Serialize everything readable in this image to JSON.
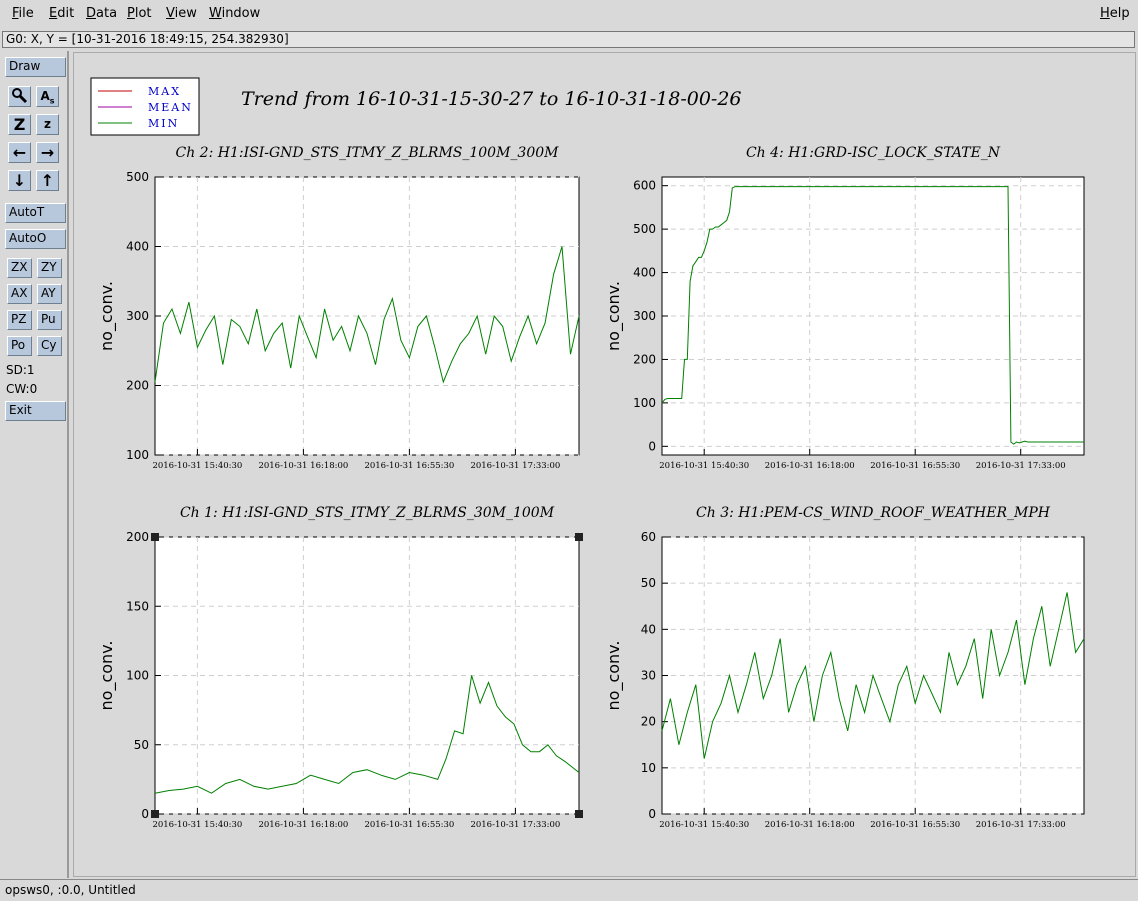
{
  "menu": [
    "File",
    "Edit",
    "Data",
    "Plot",
    "View",
    "Window"
  ],
  "help_label": "Help",
  "readout": "G0: X, Y = [10-31-2016 18:49:15, 254.382930]",
  "toolbar": {
    "draw": "Draw",
    "icons": [
      "magnify-icon",
      "text-icon",
      "zoom-out-icon",
      "zoom-in-icon",
      "arrow-left-icon",
      "arrow-right-icon",
      "arrow-down-icon",
      "arrow-up-icon"
    ],
    "icon_glyphs": [
      "🔍︎",
      "A",
      "Z",
      "z",
      "←",
      "→",
      "↓",
      "↑"
    ],
    "autot": "AutoT",
    "autoo": "AutoO",
    "pairs": [
      [
        "ZX",
        "ZY"
      ],
      [
        "AX",
        "AY"
      ],
      [
        "PZ",
        "Pu"
      ],
      [
        "Po",
        "Cy"
      ]
    ],
    "sd": "SD:1",
    "cw": "CW:0",
    "exit": "Exit"
  },
  "status": "opsws0, :0.0, Untitled",
  "legend": [
    {
      "label": "MAX",
      "color": "#c00000"
    },
    {
      "label": "MEAN",
      "color": "#a000a0"
    },
    {
      "label": "MIN",
      "color": "#008000"
    }
  ],
  "trend_title": "Trend from 16-10-31-15-30-27 to 16-10-31-18-00-26",
  "chart_data": [
    {
      "type": "line",
      "title": "Ch 2: H1:ISI-GND_STS_ITMY_Z_BLRMS_100M_300M",
      "ylabel": "no_conv.",
      "ylim": [
        100,
        500
      ],
      "yticks": [
        100,
        200,
        300,
        400,
        500
      ],
      "xticks": [
        "2016-10-31 15:40:30",
        "2016-10-31 16:18:00",
        "2016-10-31 16:55:30",
        "2016-10-31 17:33:00"
      ],
      "xlim": [
        0,
        150
      ],
      "grid": true,
      "series": [
        {
          "name": "MIN",
          "color": "#008000",
          "x": [
            0,
            3,
            6,
            9,
            12,
            15,
            18,
            21,
            24,
            27,
            30,
            33,
            36,
            39,
            42,
            45,
            48,
            51,
            54,
            57,
            60,
            63,
            66,
            69,
            72,
            75,
            78,
            81,
            84,
            87,
            90,
            93,
            96,
            99,
            102,
            105,
            108,
            111,
            114,
            117,
            120,
            123,
            126,
            129,
            132,
            135,
            138,
            141,
            144,
            147,
            150
          ],
          "y": [
            205,
            290,
            310,
            275,
            320,
            255,
            280,
            300,
            230,
            295,
            285,
            260,
            310,
            250,
            275,
            290,
            225,
            300,
            270,
            240,
            310,
            265,
            285,
            250,
            300,
            275,
            230,
            295,
            325,
            265,
            240,
            285,
            300,
            255,
            205,
            235,
            260,
            275,
            300,
            245,
            300,
            285,
            235,
            270,
            300,
            260,
            290,
            360,
            400,
            245,
            300
          ]
        }
      ]
    },
    {
      "type": "line",
      "title": "Ch 4: H1:GRD-ISC_LOCK_STATE_N",
      "ylabel": "no_conv.",
      "ylim": [
        -20,
        620
      ],
      "yticks": [
        0,
        100,
        200,
        300,
        400,
        500,
        600
      ],
      "xticks": [
        "2016-10-31 15:40:30",
        "2016-10-31 16:18:00",
        "2016-10-31 16:55:30",
        "2016-10-31 17:33:00"
      ],
      "xlim": [
        0,
        150
      ],
      "grid": true,
      "series": [
        {
          "name": "MIN",
          "color": "#008000",
          "x": [
            0,
            1,
            2,
            7,
            8,
            9,
            10,
            11,
            12,
            13,
            14,
            15,
            16,
            17,
            18,
            19,
            20,
            21,
            22,
            23,
            24,
            25,
            26,
            27,
            28,
            29,
            30,
            31,
            32,
            33,
            34,
            35,
            36,
            37,
            38,
            39,
            40,
            41,
            42,
            43,
            44,
            45,
            46,
            47,
            48,
            49,
            50,
            51,
            52,
            53,
            54,
            55,
            56,
            57,
            58,
            59,
            60,
            61,
            62,
            63,
            64,
            65,
            66,
            67,
            68,
            69,
            70,
            71,
            72,
            73,
            74,
            75,
            76,
            77,
            78,
            79,
            80,
            81,
            82,
            83,
            84,
            85,
            86,
            87,
            88,
            89,
            90,
            91,
            92,
            93,
            94,
            95,
            96,
            97,
            98,
            99,
            100,
            101,
            102,
            103,
            104,
            105,
            106,
            107,
            108,
            109,
            110,
            111,
            112,
            113,
            114,
            115,
            116,
            117,
            118,
            119,
            120,
            121,
            122,
            123,
            124,
            125,
            126,
            127,
            128,
            129,
            130,
            131,
            132,
            133,
            134,
            135,
            136,
            137,
            138,
            139,
            140,
            141,
            142,
            143,
            144,
            145,
            146,
            147,
            148,
            149,
            150
          ],
          "y": [
            100,
            108,
            110,
            110,
            200,
            200,
            380,
            415,
            425,
            435,
            435,
            450,
            470,
            500,
            500,
            505,
            505,
            510,
            515,
            520,
            540,
            595,
            598,
            598,
            598,
            598,
            598,
            598,
            598,
            598,
            598,
            598,
            598,
            598,
            598,
            598,
            598,
            598,
            598,
            598,
            598,
            598,
            598,
            598,
            598,
            598,
            598,
            598,
            598,
            598,
            598,
            598,
            598,
            598,
            598,
            598,
            598,
            598,
            598,
            598,
            598,
            598,
            598,
            598,
            598,
            598,
            598,
            598,
            598,
            598,
            598,
            598,
            598,
            598,
            598,
            598,
            598,
            598,
            598,
            598,
            598,
            598,
            598,
            598,
            598,
            598,
            598,
            598,
            598,
            598,
            598,
            598,
            598,
            598,
            598,
            598,
            598,
            598,
            598,
            598,
            598,
            598,
            598,
            598,
            598,
            598,
            598,
            598,
            598,
            598,
            598,
            598,
            598,
            598,
            598,
            598,
            598,
            598,
            598,
            598,
            10,
            5,
            10,
            8,
            10,
            12,
            10,
            10,
            10,
            10,
            10,
            10,
            10,
            10,
            10,
            10,
            10,
            10,
            10,
            10,
            10,
            10,
            10,
            10,
            10,
            10,
            10
          ]
        }
      ]
    },
    {
      "type": "line",
      "title": "Ch 1: H1:ISI-GND_STS_ITMY_Z_BLRMS_30M_100M",
      "ylabel": "no_conv.",
      "ylim": [
        0,
        200
      ],
      "yticks": [
        0,
        50,
        100,
        150,
        200
      ],
      "xticks": [
        "2016-10-31 15:40:30",
        "2016-10-31 16:18:00",
        "2016-10-31 16:55:30",
        "2016-10-31 17:33:00"
      ],
      "xlim": [
        0,
        150
      ],
      "grid": true,
      "series": [
        {
          "name": "MIN",
          "color": "#008000",
          "x": [
            0,
            5,
            10,
            15,
            20,
            25,
            30,
            35,
            40,
            45,
            50,
            55,
            60,
            65,
            70,
            75,
            80,
            85,
            90,
            95,
            100,
            103,
            106,
            109,
            112,
            115,
            118,
            121,
            124,
            127,
            130,
            133,
            136,
            139,
            142,
            145,
            150
          ],
          "y": [
            15,
            17,
            18,
            20,
            15,
            22,
            25,
            20,
            18,
            20,
            22,
            28,
            25,
            22,
            30,
            32,
            28,
            25,
            30,
            28,
            25,
            40,
            60,
            58,
            100,
            80,
            95,
            78,
            70,
            65,
            50,
            45,
            45,
            50,
            42,
            38,
            30
          ]
        }
      ]
    },
    {
      "type": "line",
      "title": "Ch 3: H1:PEM-CS_WIND_ROOF_WEATHER_MPH",
      "ylabel": "no_conv.",
      "ylim": [
        0,
        60
      ],
      "yticks": [
        0,
        10,
        20,
        30,
        40,
        50,
        60
      ],
      "xticks": [
        "2016-10-31 15:40:30",
        "2016-10-31 16:18:00",
        "2016-10-31 16:55:30",
        "2016-10-31 17:33:00"
      ],
      "xlim": [
        0,
        150
      ],
      "grid": true,
      "series": [
        {
          "name": "MIN",
          "color": "#008000",
          "x": [
            0,
            3,
            6,
            9,
            12,
            15,
            18,
            21,
            24,
            27,
            30,
            33,
            36,
            39,
            42,
            45,
            48,
            51,
            54,
            57,
            60,
            63,
            66,
            69,
            72,
            75,
            78,
            81,
            84,
            87,
            90,
            93,
            96,
            99,
            102,
            105,
            108,
            111,
            114,
            117,
            120,
            123,
            126,
            129,
            132,
            135,
            138,
            141,
            144,
            147,
            150
          ],
          "y": [
            18,
            25,
            15,
            22,
            28,
            12,
            20,
            24,
            30,
            22,
            28,
            35,
            25,
            30,
            38,
            22,
            28,
            32,
            20,
            30,
            35,
            25,
            18,
            28,
            22,
            30,
            25,
            20,
            28,
            32,
            24,
            30,
            26,
            22,
            35,
            28,
            32,
            38,
            25,
            40,
            30,
            35,
            42,
            28,
            38,
            45,
            32,
            40,
            48,
            35,
            38
          ]
        }
      ]
    }
  ]
}
